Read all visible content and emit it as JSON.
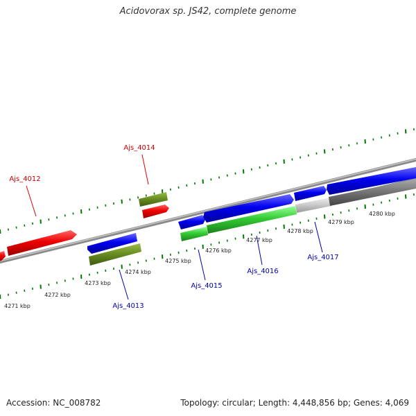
{
  "title": "Acidovorax sp. JS42, complete genome",
  "footer": {
    "accession_label": "Accession:",
    "accession": "NC_008782",
    "topology_label": "Topology:",
    "topology": "circular",
    "length_label": "Length:",
    "length": "4,448,856 bp",
    "genes_label": "Genes:",
    "genes": "4,069"
  },
  "colors": {
    "forward_cds": "#0000ee",
    "reverse_cds": "#dd0000",
    "rna_gene": "#33cc33",
    "olive_feature": "#6b8e23",
    "gray_feature": "#777777",
    "light_gray_feature": "#cccccc",
    "tick": "#007700",
    "forward_label": "#0000aa",
    "reverse_label": "#cc0000"
  },
  "axis": {
    "kbp_labels": [
      "4271 kbp",
      "4272 kbp",
      "4273 kbp",
      "4274 kbp",
      "4275 kbp",
      "4276 kbp",
      "4277 kbp",
      "4278 kbp",
      "4279 kbp",
      "4280 kbp"
    ],
    "kbp_values": [
      4271,
      4272,
      4273,
      4274,
      4275,
      4276,
      4277,
      4278,
      4279,
      4280
    ]
  },
  "gene_labels": [
    {
      "text": "Ajs_4012",
      "strand": "reverse"
    },
    {
      "text": "Ajs_4014",
      "strand": "reverse"
    },
    {
      "text": "Ajs_4013",
      "strand": "forward"
    },
    {
      "text": "Ajs_4015",
      "strand": "forward"
    },
    {
      "text": "Ajs_4016",
      "strand": "forward"
    },
    {
      "text": "Ajs_4017",
      "strand": "forward"
    }
  ]
}
